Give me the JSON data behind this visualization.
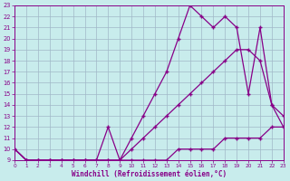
{
  "xlabel": "Windchill (Refroidissement éolien,°C)",
  "background_color": "#c8ecec",
  "grid_color": "#a0b8c8",
  "line_color": "#880088",
  "xlim": [
    0,
    23
  ],
  "ylim": [
    9,
    23
  ],
  "xticks": [
    0,
    1,
    2,
    3,
    4,
    5,
    6,
    7,
    8,
    9,
    10,
    11,
    12,
    13,
    14,
    15,
    16,
    17,
    18,
    19,
    20,
    21,
    22,
    23
  ],
  "yticks": [
    9,
    10,
    11,
    12,
    13,
    14,
    15,
    16,
    17,
    18,
    19,
    20,
    21,
    22,
    23
  ],
  "curve1_x": [
    0,
    1,
    2,
    3,
    4,
    5,
    6,
    7,
    8,
    9,
    10,
    11,
    12,
    13,
    14,
    15,
    16,
    17,
    18,
    19,
    20,
    21,
    22,
    23
  ],
  "curve1_y": [
    10,
    9,
    9,
    9,
    9,
    9,
    9,
    9,
    9,
    9,
    9,
    9,
    9,
    9,
    10,
    10,
    10,
    10,
    11,
    11,
    11,
    11,
    12,
    12
  ],
  "curve2_x": [
    0,
    1,
    2,
    3,
    4,
    5,
    6,
    7,
    8,
    9,
    10,
    11,
    12,
    13,
    14,
    15,
    16,
    17,
    18,
    19,
    20,
    21,
    22,
    23
  ],
  "curve2_y": [
    10,
    9,
    9,
    9,
    9,
    9,
    9,
    9,
    9,
    9,
    10,
    11,
    12,
    13,
    14,
    15,
    16,
    17,
    18,
    19,
    19,
    18,
    14,
    13
  ],
  "curve3_x": [
    0,
    1,
    2,
    3,
    4,
    5,
    6,
    7,
    8,
    9,
    10,
    11,
    12,
    13,
    14,
    15,
    16,
    17,
    18,
    19,
    20,
    21,
    22,
    23
  ],
  "curve3_y": [
    10,
    9,
    9,
    9,
    9,
    9,
    9,
    9,
    12,
    9,
    11,
    13,
    15,
    17,
    20,
    23,
    22,
    21,
    22,
    21,
    15,
    21,
    14,
    12
  ]
}
